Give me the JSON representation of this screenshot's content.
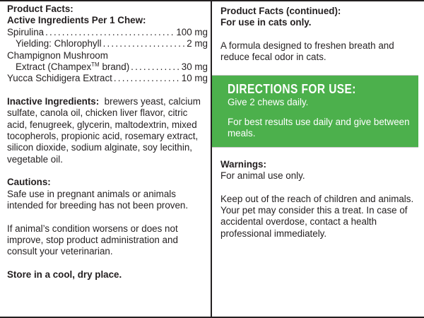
{
  "left": {
    "product_facts_heading": "Product Facts:",
    "active_heading": "Active Ingredients Per 1 Chew:",
    "ingredients": [
      {
        "name": "Spirulina",
        "amount": "100 mg",
        "indent": false
      },
      {
        "name": "Yielding: Chlorophyll",
        "amount": "2 mg",
        "indent": true
      },
      {
        "name": "Champignon Mushroom",
        "amount": "",
        "indent": false
      },
      {
        "name": "Extract (Champex",
        "tm": "TM",
        "name_after": " brand)",
        "amount": "30 mg",
        "indent": true
      },
      {
        "name": "Yucca Schidigera Extract",
        "amount": "10 mg",
        "indent": false
      }
    ],
    "inactive_label": "Inactive Ingredients:",
    "inactive_text": "brewers yeast, calcium sulfate, canola oil, chicken liver flavor, citric acid, fenugreek, glycerin, maltodextrin, mixed tocopherols, propionic acid, rosemary extract, silicon dioxide, sodium alginate, soy lecithin, vegetable oil.",
    "cautions_heading": "Cautions:",
    "cautions_text_1": "Safe use in pregnant animals or animals intended for breeding has not been proven.",
    "cautions_text_2": "If animal’s condition worsens or does not improve, stop product administration and consult your veterinarian.",
    "storage": "Store in a cool, dry place."
  },
  "right": {
    "continued_heading": "Product Facts (continued):",
    "use_heading": "For use in cats only.",
    "description": "A formula designed to freshen breath and reduce fecal odor in cats.",
    "directions": {
      "title": "DIRECTIONS FOR USE:",
      "line_1": "Give 2 chews daily.",
      "line_2": "For best results use daily and give between meals."
    },
    "warnings_heading": "Warnings:",
    "warnings_text": "For animal use only.",
    "warnings_text_2": "Keep out of the reach of children and animals. Your pet may consider this a treat. In case of accidental overdose, contact a health professional immediately."
  },
  "colors": {
    "directions_background": "#4cb04c",
    "text": "#231f20",
    "border": "#231f20"
  }
}
